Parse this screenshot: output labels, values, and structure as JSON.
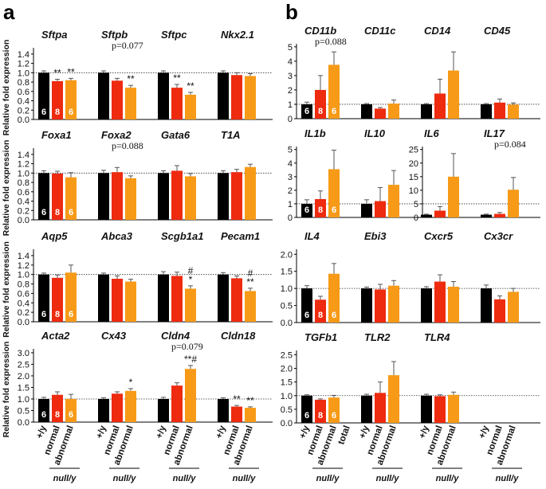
{
  "colors": {
    "wt": "#000000",
    "normal": "#ee2a0f",
    "abnormal": "#f79a17",
    "err": "#555555",
    "axis": "#000000"
  },
  "panel_letters": [
    "a",
    "b"
  ],
  "y_label": "Relative fold expression",
  "x_categories": [
    "+/y",
    "normal",
    "abnormal"
  ],
  "extra_category": "total",
  "group_label": "null/y",
  "chart_data": [
    {
      "type": "bar",
      "id": "a1",
      "ylabel": "Relative fold expression",
      "yticks": [
        0,
        0.2,
        0.4,
        0.6,
        0.8,
        1.0,
        1.2,
        1.4
      ],
      "ylim": [
        0,
        1.5
      ],
      "n_labels": [
        "6",
        "8",
        "6"
      ],
      "genes": [
        {
          "name": "Sftpa",
          "values": [
            1.0,
            0.82,
            0.84
          ],
          "errors": [
            0.04,
            0.04,
            0.04
          ],
          "marks": [
            "",
            "**",
            "**"
          ]
        },
        {
          "name": "Sftpb",
          "values": [
            1.0,
            0.83,
            0.68
          ],
          "errors": [
            0.04,
            0.05,
            0.05
          ],
          "marks": [
            "",
            "",
            "**"
          ],
          "note": "p=0.077"
        },
        {
          "name": "Sftpc",
          "values": [
            1.0,
            0.68,
            0.53
          ],
          "errors": [
            0.04,
            0.07,
            0.05
          ],
          "marks": [
            "",
            "**",
            "**"
          ]
        },
        {
          "name": "Nkx2.1",
          "values": [
            1.0,
            0.95,
            0.93
          ],
          "errors": [
            0.04,
            0.05,
            0.05
          ],
          "marks": [
            "",
            "",
            ""
          ]
        }
      ]
    },
    {
      "type": "bar",
      "id": "a2",
      "ylabel": "Relative fold expression",
      "yticks": [
        0,
        0.2,
        0.4,
        0.6,
        0.8,
        1.0,
        1.2,
        1.4
      ],
      "ylim": [
        0,
        1.5
      ],
      "n_labels": [
        "6",
        "8",
        "6"
      ],
      "genes": [
        {
          "name": "Foxa1",
          "values": [
            1.0,
            0.99,
            0.91
          ],
          "errors": [
            0.05,
            0.05,
            0.1
          ],
          "marks": [
            "",
            "",
            ""
          ]
        },
        {
          "name": "Foxa2",
          "values": [
            1.0,
            1.02,
            0.89
          ],
          "errors": [
            0.06,
            0.1,
            0.05
          ],
          "marks": [
            "",
            "",
            ""
          ],
          "note": "p=0.088"
        },
        {
          "name": "Gata6",
          "values": [
            1.0,
            1.05,
            0.93
          ],
          "errors": [
            0.05,
            0.11,
            0.06
          ],
          "marks": [
            "",
            "",
            ""
          ]
        },
        {
          "name": "T1A",
          "values": [
            1.0,
            1.02,
            1.13
          ],
          "errors": [
            0.05,
            0.06,
            0.06
          ],
          "marks": [
            "",
            "",
            ""
          ]
        }
      ]
    },
    {
      "type": "bar",
      "id": "a3",
      "ylabel": "Relative fold expression",
      "yticks": [
        0,
        0.2,
        0.4,
        0.6,
        0.8,
        1.0,
        1.2,
        1.4
      ],
      "ylim": [
        0,
        1.5
      ],
      "n_labels": [
        "6",
        "8",
        "6"
      ],
      "genes": [
        {
          "name": "Aqp5",
          "values": [
            1.0,
            0.93,
            1.04
          ],
          "errors": [
            0.03,
            0.06,
            0.16
          ],
          "marks": [
            "",
            "",
            ""
          ]
        },
        {
          "name": "Abca3",
          "values": [
            1.0,
            0.91,
            0.85
          ],
          "errors": [
            0.03,
            0.06,
            0.05
          ],
          "marks": [
            "",
            "",
            ""
          ]
        },
        {
          "name": "Scgb1a1",
          "values": [
            1.0,
            0.97,
            0.7
          ],
          "errors": [
            0.06,
            0.08,
            0.06
          ],
          "marks": [
            "",
            "",
            "#\n*"
          ]
        },
        {
          "name": "Pecam1",
          "values": [
            1.0,
            0.92,
            0.65
          ],
          "errors": [
            0.04,
            0.05,
            0.06
          ],
          "marks": [
            "",
            "",
            "#\n**"
          ]
        }
      ]
    },
    {
      "type": "bar",
      "id": "a4",
      "ylabel": "Relative fold expression",
      "yticks": [
        0,
        0.5,
        1.0,
        1.5,
        2.0,
        2.5,
        3.0
      ],
      "ylim": [
        0,
        3.1
      ],
      "n_labels": [
        "6",
        "8",
        "6"
      ],
      "genes": [
        {
          "name": "Acta2",
          "values": [
            1.0,
            1.18,
            1.0
          ],
          "errors": [
            0.07,
            0.13,
            0.2
          ],
          "marks": [
            "",
            "",
            ""
          ]
        },
        {
          "name": "Cx43",
          "values": [
            1.0,
            1.23,
            1.35
          ],
          "errors": [
            0.05,
            0.08,
            0.1
          ],
          "marks": [
            "",
            "",
            "*"
          ]
        },
        {
          "name": "Cldn4",
          "values": [
            1.0,
            1.58,
            2.3
          ],
          "errors": [
            0.07,
            0.12,
            0.15
          ],
          "marks": [
            "",
            "",
            "**#"
          ],
          "note": "p=0.079"
        },
        {
          "name": "Cldn18",
          "values": [
            1.0,
            0.67,
            0.62
          ],
          "errors": [
            0.05,
            0.05,
            0.04
          ],
          "marks": [
            "",
            "**",
            "**"
          ]
        }
      ]
    },
    {
      "type": "bar",
      "id": "b1",
      "ylabel": "",
      "yticks": [
        0,
        1.0,
        2.0,
        3.0,
        4.0,
        5.0
      ],
      "ylim": [
        0,
        5.1
      ],
      "n_labels": [
        "6",
        "8",
        "6"
      ],
      "genes": [
        {
          "name": "CD11b",
          "values": [
            1.0,
            2.0,
            3.75
          ],
          "errors": [
            0.15,
            1.0,
            0.9
          ],
          "marks": [
            "",
            "",
            ""
          ],
          "note": "p=0.088"
        },
        {
          "name": "CD11c",
          "values": [
            1.0,
            0.7,
            1.05
          ],
          "errors": [
            0.05,
            0.08,
            0.25
          ],
          "marks": [
            "",
            "",
            ""
          ]
        },
        {
          "name": "CD14",
          "values": [
            1.0,
            1.75,
            3.35
          ],
          "errors": [
            0.05,
            1.0,
            1.3
          ],
          "marks": [
            "",
            "",
            ""
          ]
        },
        {
          "name": "CD45",
          "values": [
            1.0,
            1.12,
            0.98
          ],
          "errors": [
            0.05,
            0.25,
            0.12
          ],
          "marks": [
            "",
            "",
            ""
          ]
        }
      ]
    },
    {
      "type": "bar",
      "id": "b2",
      "ylabel": "",
      "yticks": [
        0,
        1.0,
        2.0,
        3.0,
        4.0,
        5.0
      ],
      "ylim": [
        0,
        5.1
      ],
      "yticks_right": [
        0,
        5,
        10,
        15,
        20,
        25
      ],
      "ylim_right": [
        0,
        25.5
      ],
      "n_labels": [
        "6",
        "8",
        "6"
      ],
      "genes": [
        {
          "name": "IL1b",
          "values": [
            1.0,
            1.35,
            3.55
          ],
          "errors": [
            0.3,
            0.6,
            1.4
          ],
          "marks": [
            "",
            "",
            ""
          ],
          "axis": "left"
        },
        {
          "name": "IL10",
          "values": [
            1.0,
            1.2,
            2.4
          ],
          "errors": [
            0.3,
            1.0,
            1.05
          ],
          "marks": [
            "",
            "",
            ""
          ],
          "axis": "left"
        },
        {
          "name": "IL6",
          "values": [
            1.0,
            2.5,
            15.0
          ],
          "errors": [
            0.2,
            1.5,
            8.5
          ],
          "marks": [
            "",
            "",
            ""
          ],
          "axis": "right"
        },
        {
          "name": "IL17",
          "values": [
            1.0,
            1.3,
            10.2
          ],
          "errors": [
            0.2,
            0.5,
            4.5
          ],
          "marks": [
            "",
            "",
            ""
          ],
          "axis": "right",
          "note": "p=0.084"
        }
      ]
    },
    {
      "type": "bar",
      "id": "b3",
      "ylabel": "",
      "yticks": [
        0,
        0.5,
        1.0,
        1.5,
        2.0
      ],
      "ylim": [
        0,
        2.1
      ],
      "n_labels": [
        "6",
        "8",
        "6"
      ],
      "genes": [
        {
          "name": "IL4",
          "values": [
            1.0,
            0.67,
            1.43
          ],
          "errors": [
            0.08,
            0.1,
            0.3
          ],
          "marks": [
            "",
            "",
            ""
          ]
        },
        {
          "name": "Ebi3",
          "values": [
            1.0,
            0.97,
            1.08
          ],
          "errors": [
            0.04,
            0.15,
            0.15
          ],
          "marks": [
            "",
            "",
            ""
          ]
        },
        {
          "name": "Cxcr5",
          "values": [
            1.0,
            1.2,
            1.05
          ],
          "errors": [
            0.05,
            0.2,
            0.15
          ],
          "marks": [
            "",
            "",
            ""
          ]
        },
        {
          "name": "Cx3cr",
          "values": [
            1.0,
            0.68,
            0.9
          ],
          "errors": [
            0.1,
            0.1,
            0.1
          ],
          "marks": [
            "",
            "",
            ""
          ]
        }
      ]
    },
    {
      "type": "bar",
      "id": "b4",
      "ylabel": "",
      "yticks": [
        0,
        0.5,
        1.0,
        1.5,
        2.0,
        2.5
      ],
      "ylim": [
        0,
        2.6
      ],
      "n_labels": [
        "6",
        "8",
        "6"
      ],
      "genes": [
        {
          "name": "TGFb1",
          "values": [
            1.0,
            0.85,
            0.93
          ],
          "errors": [
            0.03,
            0.03,
            0.08
          ],
          "marks": [
            "",
            "",
            ""
          ]
        },
        {
          "name": "TLR2",
          "values": [
            1.0,
            1.1,
            1.75
          ],
          "errors": [
            0.05,
            0.4,
            0.5
          ],
          "marks": [
            "",
            "",
            ""
          ]
        },
        {
          "name": "TLR4",
          "values": [
            1.0,
            0.98,
            1.03
          ],
          "errors": [
            0.05,
            0.05,
            0.1
          ],
          "marks": [
            "",
            "",
            ""
          ]
        }
      ]
    }
  ]
}
